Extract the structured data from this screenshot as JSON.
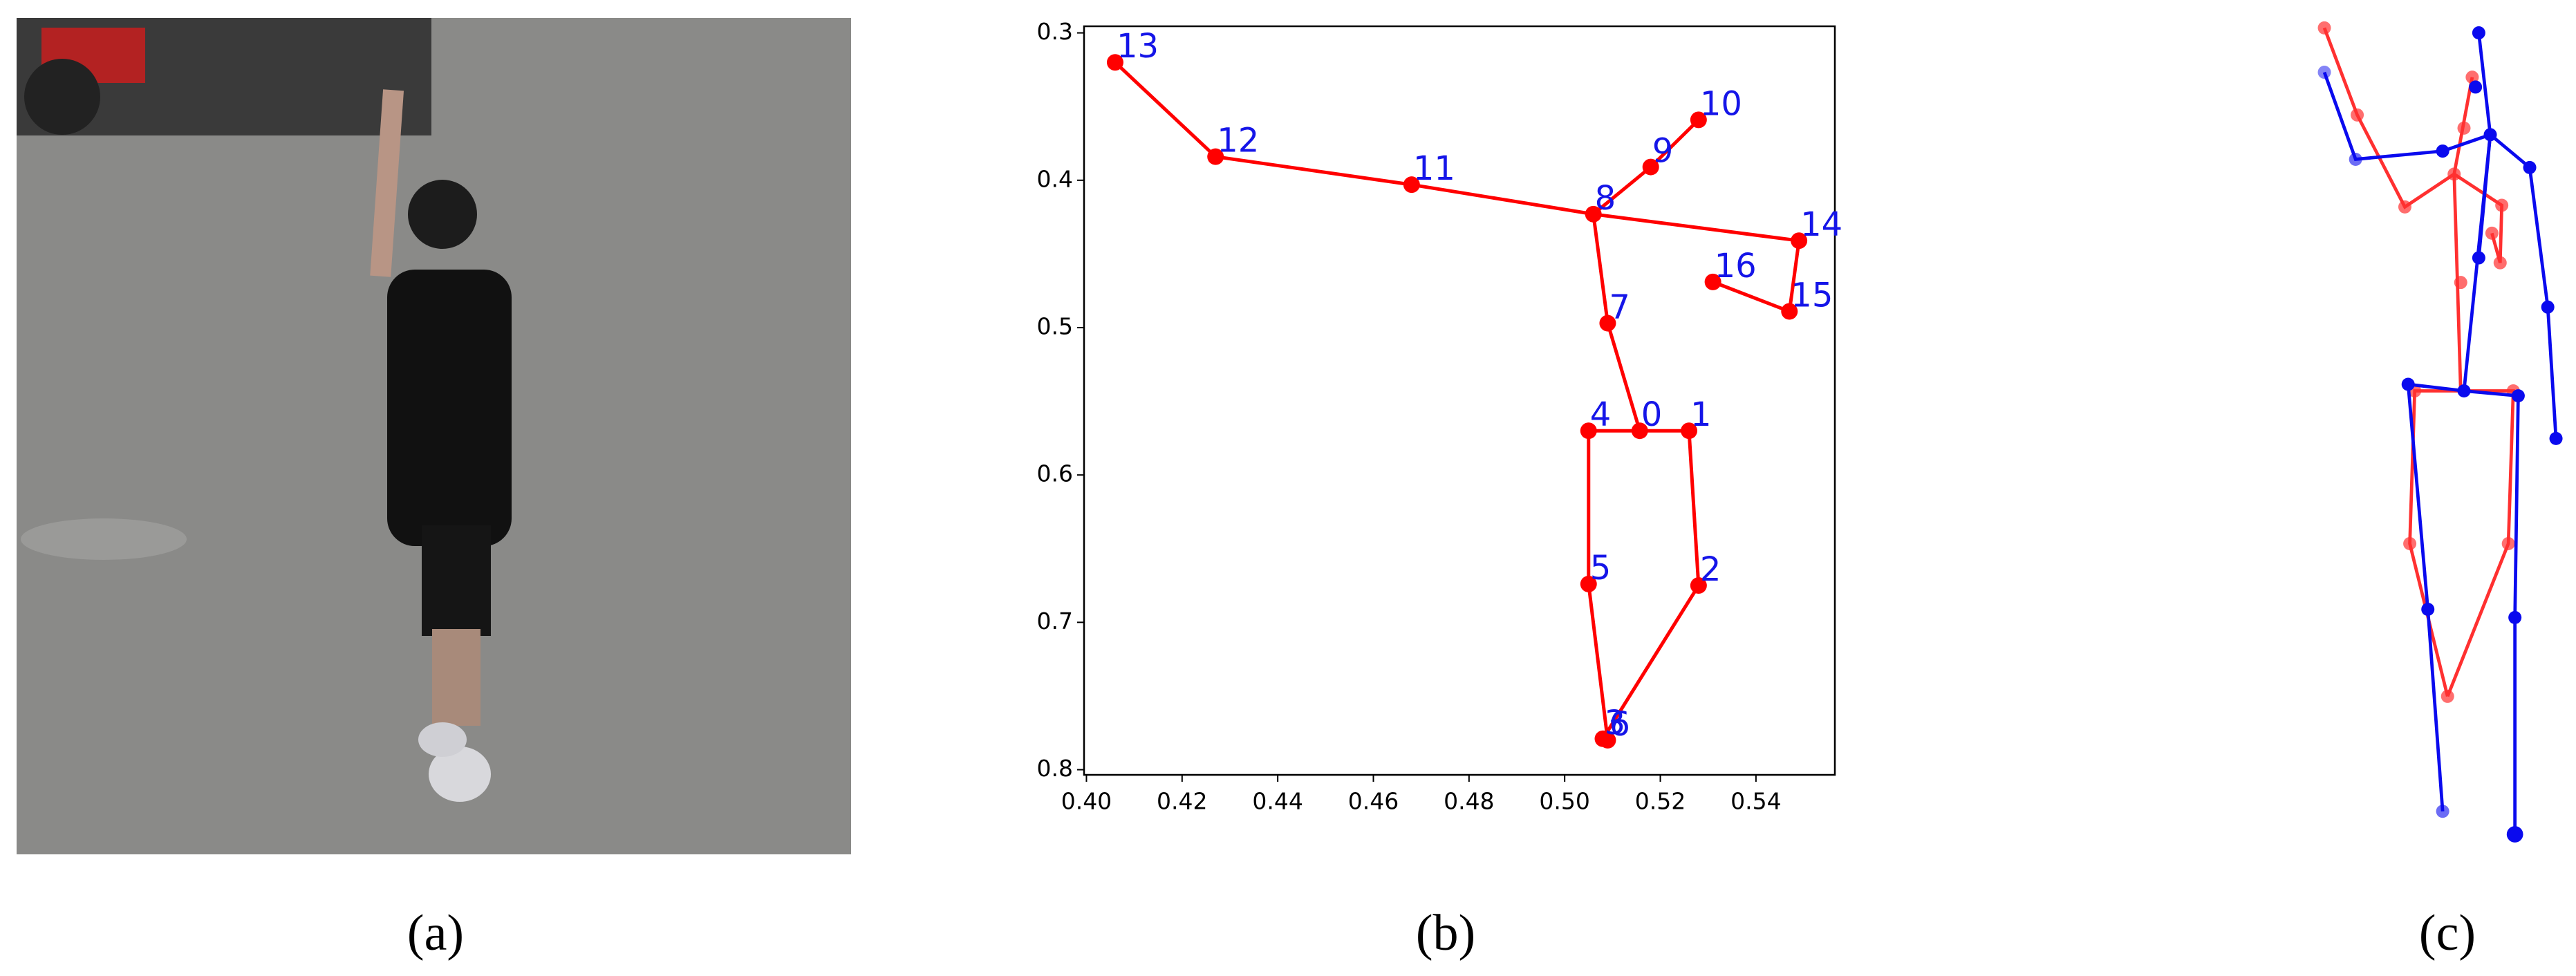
{
  "chart_data": {
    "type": "line",
    "labels": [
      "0",
      "1",
      "2",
      "3",
      "4",
      "5",
      "6",
      "7",
      "8",
      "9",
      "10",
      "11",
      "12",
      "13",
      "14",
      "15",
      "16"
    ],
    "x": [
      0.5157,
      0.526,
      0.528,
      0.508,
      0.505,
      0.505,
      0.509,
      0.509,
      0.506,
      0.518,
      0.528,
      0.468,
      0.427,
      0.406,
      0.549,
      0.547,
      0.531
    ],
    "y": [
      0.57,
      0.57,
      0.675,
      0.779,
      0.57,
      0.674,
      0.78,
      0.497,
      0.423,
      0.391,
      0.359,
      0.403,
      0.384,
      0.32,
      0.441,
      0.489,
      0.469
    ],
    "chains": [
      [
        13,
        12,
        11,
        8,
        14,
        15,
        16
      ],
      [
        10,
        9,
        8,
        7,
        0,
        1,
        2,
        3
      ],
      [
        0,
        4,
        5,
        6
      ]
    ],
    "color": "#ff0000",
    "label_color": "#1515e8",
    "xlim": [
      0.3995,
      0.5565
    ],
    "ylim": [
      0.8035,
      0.2955
    ],
    "xticks": [
      {
        "value": 0.4,
        "label": "0.40"
      },
      0.42,
      0.44,
      0.46,
      0.48,
      {
        "value": 0.5,
        "label": "0.50"
      },
      0.52,
      0.54
    ],
    "yticks": [
      0.3,
      0.4,
      0.5,
      0.6,
      0.7,
      0.8
    ]
  },
  "captions": [
    "(a)",
    "(b)",
    "(c)"
  ]
}
